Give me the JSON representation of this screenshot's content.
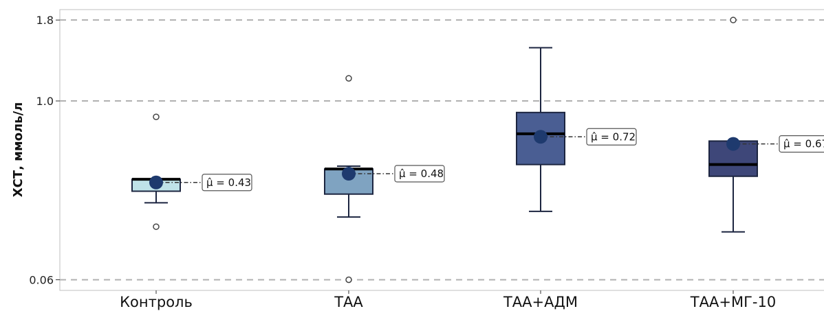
{
  "chart_data": {
    "type": "box",
    "title": "",
    "xlabel": "",
    "ylabel": "ХСТ, ммоль/л",
    "yscale": "sqrt",
    "ylim": [
      0.04,
      1.92
    ],
    "yticks": [
      0.06,
      1.0,
      1.8
    ],
    "ytick_labels": [
      "0.06",
      "1.0",
      "1.8"
    ],
    "grid": "horizontal dashed",
    "categories": [
      "Контроль",
      "ТАА",
      "ТАА+АДМ",
      "ТАА+МГ-10"
    ],
    "boxes": [
      {
        "category": "Контроль",
        "whisker_low": 0.325,
        "q1": 0.383,
        "median": 0.448,
        "q3": 0.448,
        "whisker_high": 0.448,
        "mean": 0.43,
        "outliers": [
          0.87,
          0.22
        ],
        "color": "#bfe2e8"
      },
      {
        "category": "ТАА",
        "whisker_low": 0.26,
        "q1": 0.368,
        "median": 0.508,
        "q3": 0.508,
        "whisker_high": 0.525,
        "mean": 0.48,
        "outliers": [
          1.2,
          0.06
        ],
        "color": "#7fa3c1"
      },
      {
        "category": "ТАА+АДМ",
        "whisker_low": 0.285,
        "q1": 0.535,
        "median": 0.742,
        "q3": 0.905,
        "whisker_high": 1.5,
        "mean": 0.72,
        "outliers": [],
        "color": "#4a5e93"
      },
      {
        "category": "ТАА+МГ-10",
        "whisker_low": 0.2,
        "q1": 0.465,
        "median": 0.535,
        "q3": 0.69,
        "whisker_high": 0.69,
        "mean": 0.67,
        "outliers": [
          1.8
        ],
        "color": "#3e4779"
      }
    ],
    "mean_marker_color": "#1e3a6e",
    "mean_labels": [
      "μ̂ = 0.43",
      "μ̂ = 0.48",
      "μ̂ = 0.72",
      "μ̂ = 0.67"
    ]
  }
}
